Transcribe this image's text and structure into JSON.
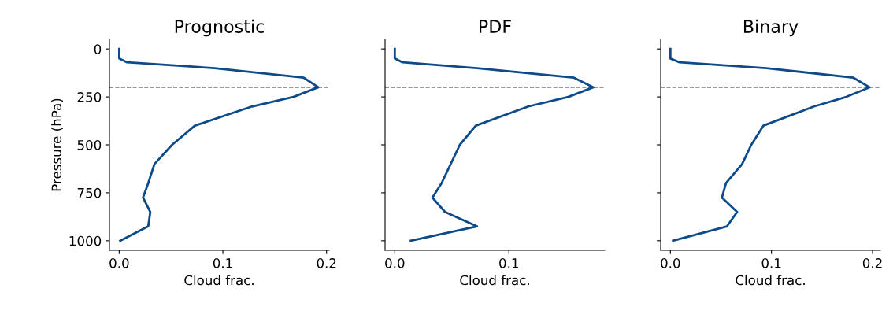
{
  "chart_data": [
    {
      "type": "line",
      "title": "Prognostic",
      "xlabel": "Cloud frac.",
      "ylabel": "Pressure (hPa)",
      "xlim": [
        -0.0094,
        0.2025
      ],
      "ylim": [
        1050,
        -50
      ],
      "xticks": [
        {
          "value": 0,
          "label": "0.0"
        },
        {
          "value": 0.1,
          "label": "0.1"
        },
        {
          "value": 0.2,
          "label": "0.2"
        }
      ],
      "yticks": [
        0,
        250,
        500,
        750,
        1000
      ],
      "grid": false,
      "marker": "none",
      "line_style": "solid",
      "series": [
        {
          "color": "#0b4a8b",
          "x": [
            0,
            0,
            0.0076,
            0.092,
            0.178,
            0.192,
            0.168,
            0.128,
            0.073,
            0.051,
            0.034,
            0.028,
            0.023,
            0.03,
            0.028,
            0.001
          ],
          "values": [
            0,
            50,
            70,
            100,
            150,
            200,
            250,
            300,
            400,
            500,
            600,
            700,
            775,
            850,
            925,
            1000
          ]
        }
      ],
      "ref_lines": [
        {
          "axis": "y",
          "value": 200,
          "color": "#333333",
          "line_style": "dashed"
        }
      ]
    },
    {
      "type": "line",
      "title": "PDF",
      "xlabel": "Cloud frac.",
      "xlim": [
        -0.0085,
        0.184
      ],
      "ylim": [
        1050,
        -50
      ],
      "xticks": [
        {
          "value": 0,
          "label": "0.0"
        },
        {
          "value": 0.1,
          "label": "0.1"
        }
      ],
      "yticks": [
        {
          "value": 0,
          "label": null
        },
        {
          "value": 250,
          "label": null
        },
        {
          "value": 500,
          "label": null
        },
        {
          "value": 750,
          "label": null
        },
        {
          "value": 1000,
          "label": null
        }
      ],
      "tick_labels": "x",
      "grid": false,
      "marker": "none",
      "line_style": "solid",
      "series": [
        {
          "color": "#0b4a8b",
          "x": [
            0,
            0,
            0.0069,
            0.072,
            0.157,
            0.174,
            0.152,
            0.117,
            0.071,
            0.057,
            0.049,
            0.041,
            0.033,
            0.044,
            0.072,
            0.014
          ],
          "values": [
            0,
            50,
            70,
            100,
            150,
            200,
            250,
            300,
            400,
            500,
            600,
            700,
            775,
            850,
            925,
            1000
          ]
        }
      ],
      "ref_lines": [
        {
          "axis": "y",
          "value": 200,
          "color": "#333333",
          "line_style": "dashed"
        }
      ]
    },
    {
      "type": "line",
      "title": "Binary",
      "xlabel": "Cloud frac.",
      "xlim": [
        -0.0096,
        0.2078
      ],
      "ylim": [
        1050,
        -50
      ],
      "xticks": [
        {
          "value": 0,
          "label": "0.0"
        },
        {
          "value": 0.1,
          "label": "0.1"
        },
        {
          "value": 0.2,
          "label": "0.2"
        }
      ],
      "yticks": [
        {
          "value": 0,
          "label": null
        },
        {
          "value": 250,
          "label": null
        },
        {
          "value": 500,
          "label": null
        },
        {
          "value": 750,
          "label": null
        },
        {
          "value": 1000,
          "label": null
        }
      ],
      "tick_labels": "x",
      "grid": false,
      "marker": "none",
      "line_style": "solid",
      "series": [
        {
          "color": "#0b4a8b",
          "x": [
            0,
            0,
            0.0091,
            0.095,
            0.181,
            0.197,
            0.174,
            0.142,
            0.092,
            0.08,
            0.071,
            0.055,
            0.051,
            0.066,
            0.056,
            0.0026
          ],
          "values": [
            0,
            50,
            70,
            100,
            150,
            200,
            250,
            300,
            400,
            500,
            600,
            700,
            775,
            850,
            925,
            1000
          ]
        }
      ],
      "ref_lines": [
        {
          "axis": "y",
          "value": 200,
          "color": "#333333",
          "line_style": "dashed"
        }
      ]
    }
  ]
}
